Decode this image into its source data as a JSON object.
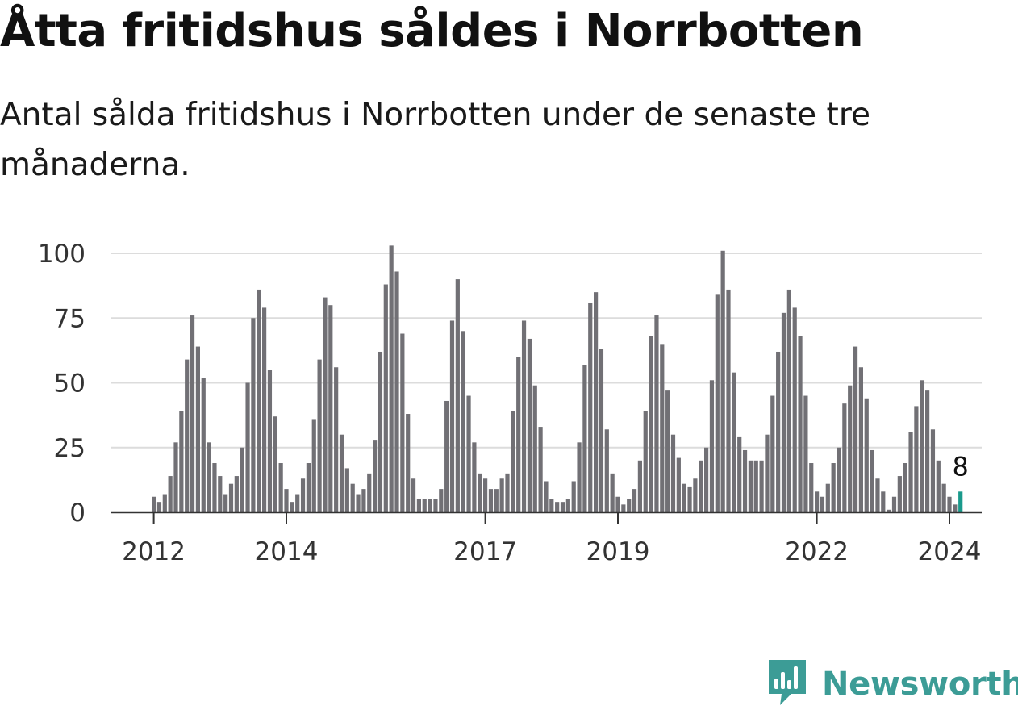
{
  "title": "Åtta fritidshus såldes i Norrbotten",
  "subtitle": "Antal sålda fritidshus i Norrbotten under de senaste tre månaderna.",
  "brand": {
    "name": "Newsworthy",
    "icon": "newsworthy-logo-icon"
  },
  "colors": {
    "bar": "#717075",
    "highlight": "#1a9a8c",
    "brand": "#3c9c96",
    "grid": "#dcdcdc"
  },
  "chart_data": {
    "type": "bar",
    "title": "",
    "xlabel": "",
    "ylabel": "",
    "ylim": [
      0,
      100
    ],
    "yticks": [
      0,
      25,
      50,
      75,
      100
    ],
    "xtick_labels": [
      "2012",
      "2014",
      "2017",
      "2019",
      "2022",
      "2024"
    ],
    "x_start": "2012-01",
    "x_end": "2024-03",
    "grid": true,
    "annotations": [
      {
        "label": "8",
        "x": "2024-03"
      }
    ],
    "series": [
      {
        "values": [
          6,
          4,
          7,
          14,
          27,
          39,
          59,
          76,
          64,
          52,
          27,
          19,
          14,
          7,
          11,
          14,
          25,
          50,
          75,
          86,
          79,
          55,
          37,
          19,
          9,
          4,
          7,
          13,
          19,
          36,
          59,
          83,
          80,
          56,
          30,
          17,
          11,
          7,
          9,
          15,
          28,
          62,
          88,
          103,
          93,
          69,
          38,
          13,
          5,
          5,
          5,
          5,
          9,
          43,
          74,
          90,
          70,
          45,
          27,
          15,
          13,
          9,
          9,
          13,
          15,
          39,
          60,
          74,
          67,
          49,
          33,
          12,
          5,
          4,
          4,
          5,
          12,
          27,
          57,
          81,
          85,
          63,
          32,
          15,
          6,
          3,
          5,
          9,
          20,
          39,
          68,
          76,
          65,
          47,
          30,
          21,
          11,
          10,
          13,
          20,
          25,
          51,
          84,
          101,
          86,
          54,
          29,
          24,
          20,
          20,
          20,
          30,
          45,
          62,
          77,
          86,
          79,
          68,
          45,
          19,
          8,
          6,
          11,
          19,
          25,
          42,
          49,
          64,
          56,
          44,
          24,
          13,
          8,
          1,
          6,
          14,
          19,
          31,
          41,
          51,
          47,
          32,
          20,
          11,
          6,
          3,
          8
        ]
      }
    ]
  }
}
